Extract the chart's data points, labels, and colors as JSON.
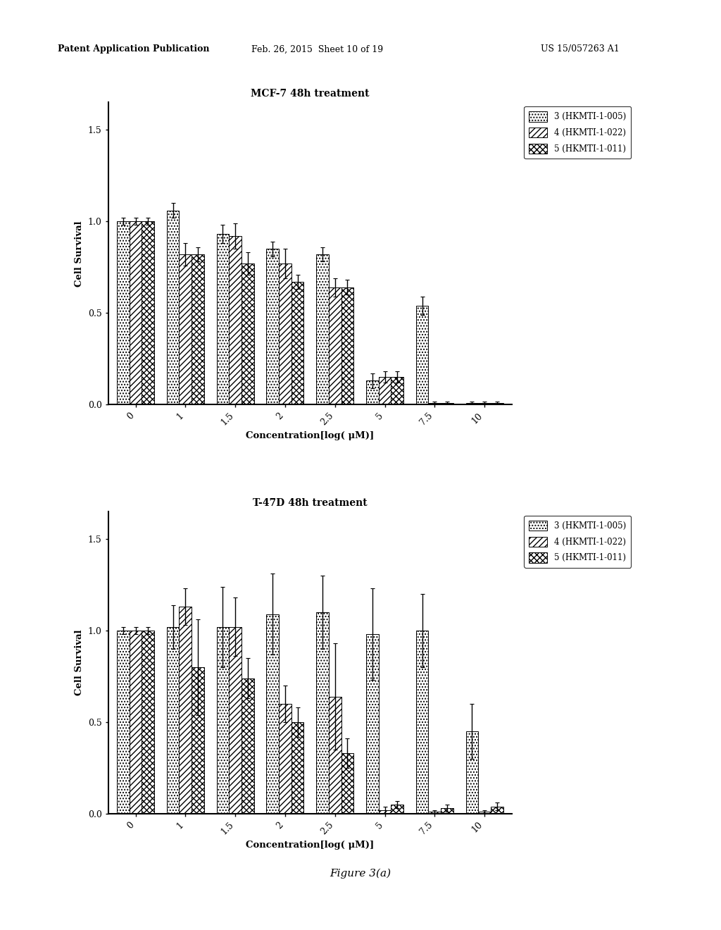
{
  "fig_title": "Figure 3(a)",
  "chart1_title": "MCF-7 48h treatment",
  "chart2_title": "T-47D 48h treatment",
  "xlabel": "Concentration[log( μM)]",
  "ylabel": "Cell Survival",
  "xtick_labels": [
    "0",
    "1",
    "1.5",
    "2",
    "2.5",
    "5",
    "7.5",
    "10"
  ],
  "ytick_labels": [
    "0.0",
    "0.5",
    "1.0",
    "1.5"
  ],
  "ytick_values": [
    0.0,
    0.5,
    1.0,
    1.5
  ],
  "ylim": [
    0.0,
    1.65
  ],
  "legend_labels": [
    "3 (HKMTI-1-005)",
    "4 (HKMTI-1-022)",
    "5 (HKMTI-1-011)"
  ],
  "chart1_values": {
    "series1": [
      1.0,
      1.06,
      0.93,
      0.85,
      0.82,
      0.13,
      0.54,
      0.01
    ],
    "series2": [
      1.0,
      0.82,
      0.92,
      0.77,
      0.64,
      0.15,
      0.01,
      0.01
    ],
    "series3": [
      1.0,
      0.82,
      0.77,
      0.67,
      0.64,
      0.15,
      0.01,
      0.01
    ]
  },
  "chart1_errors": {
    "series1": [
      0.02,
      0.04,
      0.05,
      0.04,
      0.04,
      0.04,
      0.05,
      0.005
    ],
    "series2": [
      0.02,
      0.06,
      0.07,
      0.08,
      0.05,
      0.03,
      0.005,
      0.005
    ],
    "series3": [
      0.02,
      0.04,
      0.06,
      0.04,
      0.04,
      0.03,
      0.005,
      0.005
    ]
  },
  "chart2_values": {
    "series1": [
      1.0,
      1.02,
      1.02,
      1.09,
      1.1,
      0.98,
      1.0,
      0.45
    ],
    "series2": [
      1.0,
      1.13,
      1.02,
      0.6,
      0.64,
      0.02,
      0.01,
      0.01
    ],
    "series3": [
      1.0,
      0.8,
      0.74,
      0.5,
      0.33,
      0.05,
      0.03,
      0.04
    ]
  },
  "chart2_errors": {
    "series1": [
      0.02,
      0.12,
      0.22,
      0.22,
      0.2,
      0.25,
      0.2,
      0.15
    ],
    "series2": [
      0.02,
      0.1,
      0.16,
      0.1,
      0.29,
      0.02,
      0.01,
      0.01
    ],
    "series3": [
      0.02,
      0.26,
      0.11,
      0.08,
      0.08,
      0.02,
      0.02,
      0.02
    ]
  },
  "bar_width": 0.25,
  "background_color": "#ffffff",
  "bar_edge_color": "#000000",
  "error_color": "#000000",
  "text_color": "#000000",
  "header_left": "Patent Application Publication",
  "header_mid": "Feb. 26, 2015  Sheet 10 of 19",
  "header_right": "US 15/057263 A1"
}
